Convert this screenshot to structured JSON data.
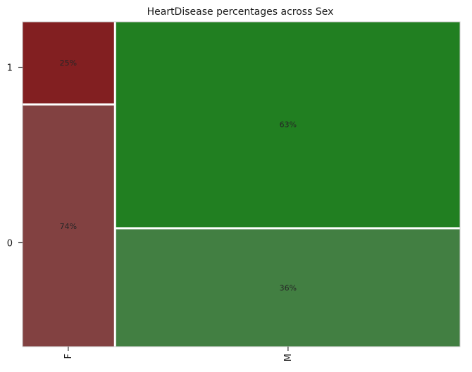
{
  "chart_data": {
    "type": "mosaic",
    "title": "HeartDisease percentages across Sex",
    "xlabel": "",
    "ylabel": "",
    "x_categories": [
      "F",
      "M"
    ],
    "y_categories": [
      "0",
      "1"
    ],
    "x_widths": [
      0.21,
      0.79
    ],
    "cells": [
      {
        "x": "F",
        "y": "0",
        "fraction": 0.74,
        "label": "74%",
        "color": "#824141"
      },
      {
        "x": "F",
        "y": "1",
        "fraction": 0.25,
        "label": "25%",
        "color": "#821f21"
      },
      {
        "x": "M",
        "y": "0",
        "fraction": 0.36,
        "label": "36%",
        "color": "#427f42"
      },
      {
        "x": "M",
        "y": "1",
        "fraction": 0.63,
        "label": "63%",
        "color": "#217f21"
      }
    ],
    "y_ticks": [
      {
        "label": "0",
        "value": 0.32
      },
      {
        "label": "1",
        "value": 0.86
      }
    ],
    "grid": true,
    "legend": "none"
  }
}
